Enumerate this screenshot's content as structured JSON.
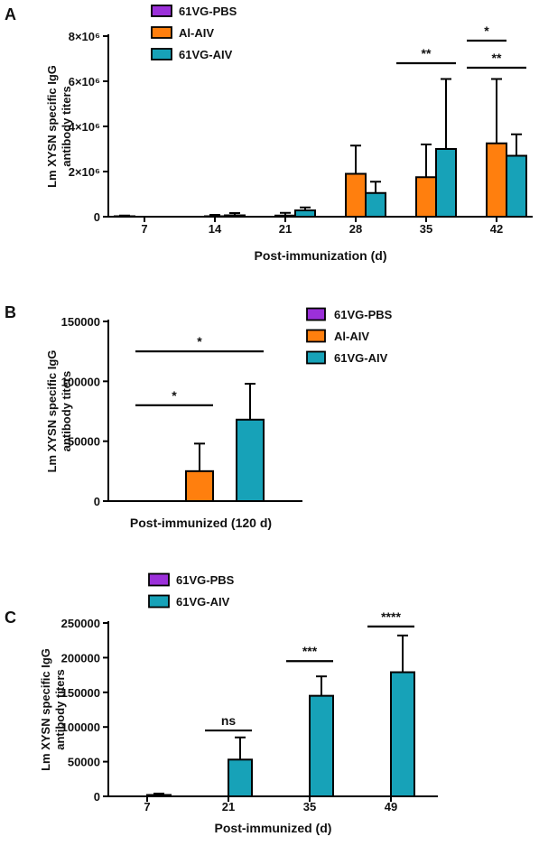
{
  "colors": {
    "61VG-PBS": "#9b30d9",
    "Al-AIV": "#ff7f0e",
    "61VG-AIV": "#17a2b8",
    "axis": "#000000"
  },
  "chart_data": [
    {
      "panel": "A",
      "type": "bar",
      "ylabel_lines": [
        "Lm XYSN specific IgG",
        "antibody titers"
      ],
      "xlabel": "Post-immunization (d)",
      "categories": [
        "7",
        "14",
        "21",
        "28",
        "35",
        "42"
      ],
      "ylim": [
        0,
        8000000
      ],
      "yticks": [
        0,
        2000000,
        4000000,
        6000000,
        8000000
      ],
      "ytick_labels": [
        "0",
        "2×10⁶",
        "4×10⁶",
        "6×10⁶",
        "8×10⁶"
      ],
      "legend_position": "top",
      "series": [
        {
          "name": "61VG-PBS",
          "values": [
            20000,
            0,
            0,
            0,
            0,
            0
          ],
          "err": [
            30000,
            0,
            0,
            0,
            0,
            0
          ]
        },
        {
          "name": "Al-AIV",
          "values": [
            0,
            20000,
            50000,
            1900000,
            1750000,
            3250000
          ],
          "err": [
            0,
            60000,
            120000,
            1250000,
            1450000,
            2850000
          ]
        },
        {
          "name": "61VG-AIV",
          "values": [
            0,
            60000,
            280000,
            1050000,
            3000000,
            2700000
          ],
          "err": [
            0,
            100000,
            130000,
            500000,
            3100000,
            950000
          ]
        }
      ],
      "significance": [
        {
          "label": "**",
          "from": [
            4,
            0
          ],
          "to": [
            4,
            2
          ],
          "y": 6800000
        },
        {
          "label": "*",
          "from": [
            5,
            0
          ],
          "to": [
            5,
            1
          ],
          "y": 7800000
        },
        {
          "label": "**",
          "from": [
            5,
            0
          ],
          "to": [
            5,
            2
          ],
          "y": 6600000
        }
      ]
    },
    {
      "panel": "B",
      "type": "bar",
      "ylabel_lines": [
        "Lm XYSN specific IgG",
        "antibody titers"
      ],
      "xlabel": "Post-immunized (120 d)",
      "categories": [
        ""
      ],
      "ylim": [
        0,
        150000
      ],
      "yticks": [
        0,
        50000,
        100000,
        150000
      ],
      "ytick_labels": [
        "0",
        "50000",
        "100000",
        "150000"
      ],
      "legend_position": "right",
      "series": [
        {
          "name": "61VG-PBS",
          "values": [
            0
          ],
          "err": [
            0
          ]
        },
        {
          "name": "Al-AIV",
          "values": [
            25000
          ],
          "err": [
            23000
          ]
        },
        {
          "name": "61VG-AIV",
          "values": [
            68000
          ],
          "err": [
            30000
          ]
        }
      ],
      "significance": [
        {
          "label": "*",
          "from": [
            0,
            0
          ],
          "to": [
            0,
            1
          ],
          "y": 80000
        },
        {
          "label": "*",
          "from": [
            0,
            0
          ],
          "to": [
            0,
            2
          ],
          "y": 125000
        }
      ]
    },
    {
      "panel": "C",
      "type": "bar",
      "ylabel_lines": [
        "Lm XYSN specific IgG",
        "antibody titers"
      ],
      "xlabel": "Post-immunized (d)",
      "categories": [
        "7",
        "21",
        "35",
        "49"
      ],
      "ylim": [
        0,
        250000
      ],
      "yticks": [
        0,
        50000,
        100000,
        150000,
        200000,
        250000
      ],
      "ytick_labels": [
        "0",
        "50000",
        "100000",
        "150000",
        "200000",
        "250000"
      ],
      "legend_position": "top",
      "series": [
        {
          "name": "61VG-PBS",
          "values": [
            0,
            0,
            0,
            0
          ],
          "err": [
            0,
            0,
            0,
            0
          ]
        },
        {
          "name": "61VG-AIV",
          "values": [
            2000,
            53000,
            145000,
            179000
          ],
          "err": [
            2000,
            32000,
            28000,
            53000
          ]
        }
      ],
      "significance": [
        {
          "label": "ns",
          "from": [
            1,
            0
          ],
          "to": [
            1,
            1
          ],
          "y": 95000
        },
        {
          "label": "***",
          "from": [
            2,
            0
          ],
          "to": [
            2,
            1
          ],
          "y": 195000
        },
        {
          "label": "****",
          "from": [
            3,
            0
          ],
          "to": [
            3,
            1
          ],
          "y": 245000
        }
      ]
    }
  ]
}
